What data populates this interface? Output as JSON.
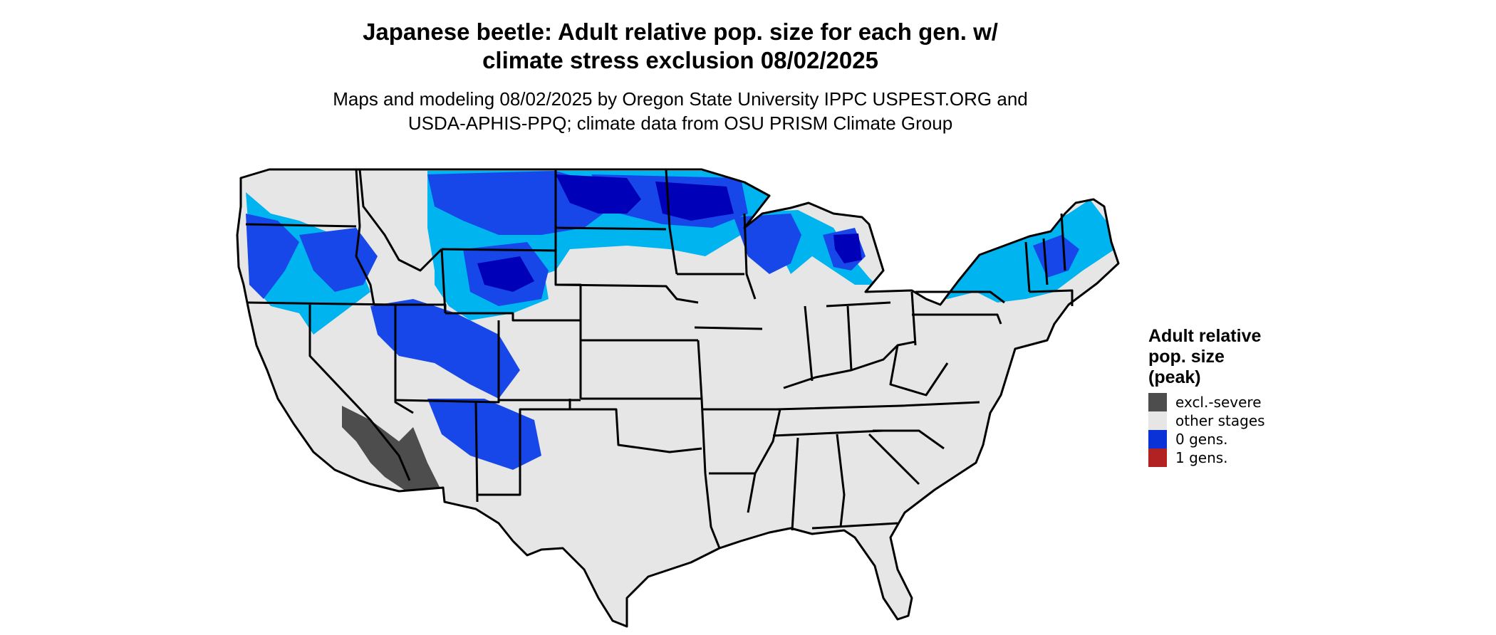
{
  "title": {
    "line1": "Japanese beetle: Adult relative pop. size for each gen. w/",
    "line2": "climate stress exclusion 08/02/2025"
  },
  "subtitle": {
    "line1": "Maps and modeling 08/02/2025 by Oregon State University IPPC USPEST.ORG and",
    "line2": "USDA-APHIS-PPQ; climate data from OSU PRISM Climate Group"
  },
  "legend": {
    "title_lines": [
      "Adult relative",
      "pop. size",
      "(peak)"
    ],
    "items": [
      {
        "label": "excl.-severe",
        "color": "#4d4d4d"
      },
      {
        "label": "other stages",
        "color": "#e6e6e6"
      },
      {
        "label": "0 gens.",
        "color": "#0a32d6"
      },
      {
        "label": "1 gens.",
        "color": "#b22222"
      }
    ]
  },
  "map": {
    "region": "Contiguous United States",
    "base_color": "#e6e6e6",
    "border_color": "#000000",
    "shade_colors": {
      "dark_blue": "#0000b8",
      "blue": "#1747e8",
      "light_blue": "#00b4f0",
      "exclusion_gray": "#4d4d4d"
    }
  }
}
